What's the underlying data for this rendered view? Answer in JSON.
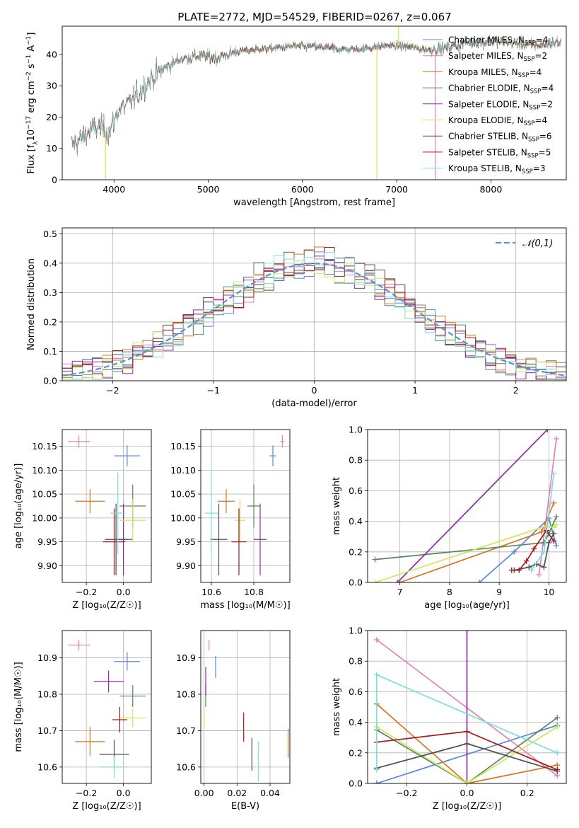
{
  "figure": {
    "title": "PLATE=2772, MJD=54529, FIBERID=0267, z=0.067"
  },
  "colors": {
    "Chabrier MILES": "#5b86d8",
    "Salpeter MILES": "#e77fb6",
    "Kroupa MILES": "#d9741f",
    "Chabrier ELODIE": "#5a8560",
    "Salpeter ELODIE": "#8f2aa8",
    "Kroupa ELODIE": "#cde85a",
    "Chabrier STELIB": "#4d4d4d",
    "Salpeter STELIB": "#a51919",
    "Kroupa STELIB": "#7fdcdc",
    "normal": "#5b8fd6"
  },
  "chart_data": [
    {
      "id": "spectrum",
      "type": "line",
      "xlabel": "wavelength [Angstrom, rest frame]",
      "ylabel_parts": [
        "Flux [f",
        "λ",
        "10",
        "−17",
        " erg cm",
        "−2",
        " s",
        "−1",
        " A",
        "−1",
        "]"
      ],
      "xlim": [
        3450,
        8800
      ],
      "ylim": [
        0,
        49
      ],
      "xticks": [
        4000,
        5000,
        6000,
        7000,
        8000
      ],
      "yticks": [
        0,
        10,
        20,
        30,
        40
      ],
      "continuum_x": [
        3550,
        3650,
        3750,
        3850,
        3950,
        4050,
        4150,
        4250,
        4350,
        4500,
        4700,
        4900,
        5100,
        5300,
        5500,
        5700,
        5900,
        6100,
        6300,
        6500,
        6700,
        6900,
        7100,
        7300,
        7500,
        7700,
        7900,
        8100,
        8300,
        8500,
        8750
      ],
      "continuum_y": [
        11,
        13,
        16,
        17,
        15,
        22.5,
        24,
        27,
        31,
        35,
        38.5,
        39.5,
        39,
        41,
        41.5,
        42,
        42.5,
        42.5,
        42,
        41.5,
        42,
        43,
        42.5,
        41.5,
        42,
        43.5,
        44,
        44,
        43.5,
        43,
        44
      ],
      "spikes": [
        {
          "x": 3910,
          "y": 0,
          "series": "Kroupa ELODIE"
        },
        {
          "x": 6790,
          "y": 0,
          "series": "Kroupa ELODIE"
        },
        {
          "x": 7410,
          "y": 0,
          "series": "Salpeter MILES"
        },
        {
          "x": 7020,
          "y": 49,
          "series": "Kroupa ELODIE"
        }
      ],
      "legend": [
        {
          "name": "Chabrier MILES",
          "label": "Chabrier MILES, N",
          "sub": "SSP",
          "val": "=4"
        },
        {
          "name": "Salpeter MILES",
          "label": "Salpeter MILES, N",
          "sub": "SSP",
          "val": "=2"
        },
        {
          "name": "Kroupa MILES",
          "label": "Kroupa MILES, N",
          "sub": "SSP",
          "val": "=4"
        },
        {
          "name": "Chabrier ELODIE",
          "label": "Chabrier ELODIE, N",
          "sub": "SSP",
          "val": "=4"
        },
        {
          "name": "Salpeter ELODIE",
          "label": "Salpeter ELODIE, N",
          "sub": "SSP",
          "val": "=2"
        },
        {
          "name": "Kroupa ELODIE",
          "label": "Kroupa ELODIE, N",
          "sub": "SSP",
          "val": "=4"
        },
        {
          "name": "Chabrier STELIB",
          "label": "Chabrier STELIB, N",
          "sub": "SSP",
          "val": "=6"
        },
        {
          "name": "Salpeter STELIB",
          "label": "Salpeter STELIB, N",
          "sub": "SSP",
          "val": "=5"
        },
        {
          "name": "Kroupa STELIB",
          "label": "Kroupa STELIB, N",
          "sub": "SSP",
          "val": "=3"
        }
      ]
    },
    {
      "id": "residuals",
      "type": "histogram",
      "xlabel": "(data-model)/error",
      "ylabel": "Normed distribution",
      "xlim": [
        -2.5,
        2.5
      ],
      "ylim": [
        0,
        0.52
      ],
      "xticks": [
        -2,
        -1,
        0,
        1,
        2
      ],
      "xticklabels": [
        "−2",
        "−1",
        "0",
        "1",
        "2"
      ],
      "yticks": [
        0,
        0.1,
        0.2,
        0.3,
        0.4,
        0.5
      ],
      "yticklabels": [
        "0.0",
        "0.1",
        "0.2",
        "0.3",
        "0.4",
        "0.5"
      ],
      "bin_width": 0.1,
      "legend": {
        "label": "𝒩(0,1)",
        "position": "upper right"
      },
      "series": [
        "Chabrier MILES",
        "Salpeter MILES",
        "Kroupa MILES",
        "Chabrier ELODIE",
        "Salpeter ELODIE",
        "Kroupa ELODIE",
        "Chabrier STELIB",
        "Salpeter STELIB",
        "Kroupa STELIB"
      ]
    },
    {
      "id": "age_vs_Z",
      "type": "errorbar",
      "xlabel": "Z [log₁₀(Z/Z☉)]",
      "ylabel": "age  [log₁₀(age/yr)]",
      "xlim": [
        -0.33,
        0.15
      ],
      "ylim": [
        9.865,
        10.185
      ],
      "xticks": [
        -0.2,
        0.0
      ],
      "xticklabels": [
        "−0.2",
        "0.0"
      ],
      "yticks": [
        9.9,
        9.95,
        10.0,
        10.05,
        10.1,
        10.15
      ],
      "yticklabels": [
        "9.90",
        "9.95",
        "10.00",
        "10.05",
        "10.10",
        "10.15"
      ],
      "points": [
        {
          "series": "Chabrier MILES",
          "x": 0.02,
          "xerr": 0.07,
          "y": 10.13,
          "yerr": 0.022
        },
        {
          "series": "Salpeter MILES",
          "x": -0.24,
          "xerr": 0.06,
          "y": 10.16,
          "yerr": 0.013
        },
        {
          "series": "Kroupa MILES",
          "x": -0.18,
          "xerr": 0.08,
          "y": 10.035,
          "yerr": 0.025
        },
        {
          "series": "Chabrier ELODIE",
          "x": 0.05,
          "xerr": 0.07,
          "y": 10.025,
          "yerr": 0.045
        },
        {
          "series": "Salpeter ELODIE",
          "x": 0.0,
          "xerr": 0.05,
          "y": 9.955,
          "yerr": 0.075
        },
        {
          "series": "Kroupa ELODIE",
          "x": 0.05,
          "xerr": 0.07,
          "y": 9.995,
          "yerr": 0.045
        },
        {
          "series": "Chabrier STELIB",
          "x": -0.04,
          "xerr": 0.06,
          "y": 9.955,
          "yerr": 0.075
        },
        {
          "series": "Salpeter STELIB",
          "x": -0.05,
          "xerr": 0.06,
          "y": 9.95,
          "yerr": 0.07
        },
        {
          "series": "Kroupa STELIB",
          "x": -0.03,
          "xerr": 0.04,
          "y": 10.01,
          "yerr": 0.085
        }
      ]
    },
    {
      "id": "age_vs_mass",
      "type": "errorbar",
      "xlabel": "mass [log₁₀(M/M☉)]",
      "ylabel": "",
      "xlim": [
        10.55,
        10.97
      ],
      "ylim": [
        9.865,
        10.185
      ],
      "xticks": [
        10.6,
        10.8
      ],
      "xticklabels": [
        "10.6",
        "10.8"
      ],
      "yticks": [
        9.9,
        9.95,
        10.0,
        10.05,
        10.1,
        10.15
      ],
      "yticklabels": [
        "9.90",
        "9.95",
        "10.00",
        "10.05",
        "10.10",
        "10.15"
      ],
      "points": [
        {
          "series": "Chabrier MILES",
          "x": 10.89,
          "xerr": 0.015,
          "y": 10.13,
          "yerr": 0.022
        },
        {
          "series": "Salpeter MILES",
          "x": 10.935,
          "xerr": 0.01,
          "y": 10.16,
          "yerr": 0.013
        },
        {
          "series": "Kroupa MILES",
          "x": 10.67,
          "xerr": 0.04,
          "y": 10.035,
          "yerr": 0.025
        },
        {
          "series": "Chabrier ELODIE",
          "x": 10.8,
          "xerr": 0.03,
          "y": 10.025,
          "yerr": 0.045
        },
        {
          "series": "Salpeter ELODIE",
          "x": 10.83,
          "xerr": 0.03,
          "y": 9.955,
          "yerr": 0.075
        },
        {
          "series": "Kroupa ELODIE",
          "x": 10.735,
          "xerr": 0.025,
          "y": 9.995,
          "yerr": 0.045
        },
        {
          "series": "Chabrier STELIB",
          "x": 10.635,
          "xerr": 0.04,
          "y": 9.955,
          "yerr": 0.075
        },
        {
          "series": "Salpeter STELIB",
          "x": 10.73,
          "xerr": 0.035,
          "y": 9.95,
          "yerr": 0.07
        },
        {
          "series": "Kroupa STELIB",
          "x": 10.6,
          "xerr": 0.03,
          "y": 10.01,
          "yerr": 0.085
        }
      ]
    },
    {
      "id": "weight_vs_age",
      "type": "line",
      "xlabel": "age  [log₁₀(age/yr)]",
      "ylabel": "mass weight",
      "xlim": [
        6.35,
        10.35
      ],
      "ylim": [
        0,
        1.0
      ],
      "xticks": [
        7,
        8,
        9,
        10
      ],
      "xticklabels": [
        "7",
        "8",
        "9",
        "10"
      ],
      "yticks": [
        0,
        0.2,
        0.4,
        0.6,
        0.8,
        1.0
      ],
      "yticklabels": [
        "0.0",
        "0.2",
        "0.4",
        "0.6",
        "0.8",
        "1.0"
      ],
      "series": [
        {
          "name": "Chabrier MILES",
          "x": [
            8.6,
            9.3,
            10.0,
            10.15
          ],
          "y": [
            0.0,
            0.2,
            0.42,
            0.24
          ]
        },
        {
          "name": "Salpeter MILES",
          "x": [
            9.8,
            10.15
          ],
          "y": [
            0.05,
            0.94
          ]
        },
        {
          "name": "Kroupa MILES",
          "x": [
            7.0,
            9.85,
            10.1
          ],
          "y": [
            0.0,
            0.33,
            0.52
          ]
        },
        {
          "name": "Chabrier ELODIE",
          "x": [
            6.5,
            9.9,
            10.0,
            10.15
          ],
          "y": [
            0.15,
            0.26,
            0.32,
            0.43
          ]
        },
        {
          "name": "Salpeter ELODIE",
          "x": [
            6.95,
            9.97
          ],
          "y": [
            0.0,
            1.0
          ]
        },
        {
          "name": "Kroupa ELODIE",
          "x": [
            6.5,
            9.95,
            10.1,
            10.15
          ],
          "y": [
            0.0,
            0.37,
            0.36,
            0.38
          ]
        },
        {
          "name": "Chabrier STELIB",
          "x": [
            9.3,
            9.6,
            9.75,
            9.9,
            10.0,
            10.1
          ],
          "y": [
            0.08,
            0.1,
            0.12,
            0.1,
            0.26,
            0.32
          ]
        },
        {
          "name": "Salpeter STELIB",
          "x": [
            9.25,
            9.4,
            9.55,
            9.7,
            9.95,
            10.1
          ],
          "y": [
            0.08,
            0.08,
            0.14,
            0.22,
            0.34,
            0.27
          ]
        },
        {
          "name": "Kroupa STELIB",
          "x": [
            9.65,
            9.9,
            10.1
          ],
          "y": [
            0.08,
            0.2,
            0.71
          ]
        }
      ]
    },
    {
      "id": "mass_vs_Z",
      "type": "errorbar",
      "xlabel": "Z [log₁₀(Z/Z☉)]",
      "ylabel": "mass [log₁₀(M/M☉)]",
      "xlim": [
        -0.33,
        0.15
      ],
      "ylim": [
        10.555,
        10.975
      ],
      "xticks": [
        -0.2,
        0.0
      ],
      "xticklabels": [
        "−0.2",
        "0.0"
      ],
      "yticks": [
        10.6,
        10.7,
        10.8,
        10.9
      ],
      "yticklabels": [
        "10.6",
        "10.7",
        "10.8",
        "10.9"
      ],
      "points": [
        {
          "series": "Chabrier MILES",
          "x": 0.02,
          "xerr": 0.07,
          "y": 10.89,
          "yerr": 0.025
        },
        {
          "series": "Salpeter MILES",
          "x": -0.24,
          "xerr": 0.06,
          "y": 10.935,
          "yerr": 0.015
        },
        {
          "series": "Kroupa MILES",
          "x": -0.18,
          "xerr": 0.08,
          "y": 10.67,
          "yerr": 0.04
        },
        {
          "series": "Chabrier ELODIE",
          "x": 0.05,
          "xerr": 0.07,
          "y": 10.795,
          "yerr": 0.03
        },
        {
          "series": "Salpeter ELODIE",
          "x": -0.08,
          "xerr": 0.08,
          "y": 10.835,
          "yerr": 0.03
        },
        {
          "series": "Kroupa ELODIE",
          "x": 0.05,
          "xerr": 0.07,
          "y": 10.735,
          "yerr": 0.025
        },
        {
          "series": "Chabrier STELIB",
          "x": -0.05,
          "xerr": 0.08,
          "y": 10.635,
          "yerr": 0.04
        },
        {
          "series": "Salpeter STELIB",
          "x": -0.02,
          "xerr": 0.04,
          "y": 10.73,
          "yerr": 0.035
        },
        {
          "series": "Kroupa STELIB",
          "x": -0.05,
          "xerr": 0.07,
          "y": 10.6,
          "yerr": 0.03
        }
      ]
    },
    {
      "id": "mass_vs_ebv",
      "type": "errorbar",
      "xlabel": "E(B-V)",
      "ylabel": "",
      "xlim": [
        -0.002,
        0.052
      ],
      "ylim": [
        10.555,
        10.975
      ],
      "xticks": [
        0.0,
        0.02,
        0.04
      ],
      "xticklabels": [
        "0.00",
        "0.02",
        "0.04"
      ],
      "yticks": [
        10.6,
        10.7,
        10.8,
        10.9
      ],
      "yticklabels": [
        "10.6",
        "10.7",
        "10.8",
        "10.9"
      ],
      "points": [
        {
          "series": "Chabrier MILES",
          "x": 0.007,
          "xerr": 0,
          "y": 10.875,
          "yerr": 0.03
        },
        {
          "series": "Salpeter MILES",
          "x": 0.003,
          "xerr": 0,
          "y": 10.935,
          "yerr": 0.015
        },
        {
          "series": "Kroupa MILES",
          "x": 0.051,
          "xerr": 0,
          "y": 10.665,
          "yerr": 0.04
        },
        {
          "series": "Chabrier ELODIE",
          "x": 0.001,
          "xerr": 0,
          "y": 10.795,
          "yerr": 0.03
        },
        {
          "series": "Salpeter ELODIE",
          "x": 0.001,
          "xerr": 0,
          "y": 10.835,
          "yerr": 0.04
        },
        {
          "series": "Kroupa ELODIE",
          "x": 0.0,
          "xerr": 0,
          "y": 10.735,
          "yerr": 0.025
        },
        {
          "series": "Chabrier STELIB",
          "x": 0.029,
          "xerr": 0,
          "y": 10.635,
          "yerr": 0.045
        },
        {
          "series": "Salpeter STELIB",
          "x": 0.024,
          "xerr": 0,
          "y": 10.71,
          "yerr": 0.04
        },
        {
          "series": "Kroupa STELIB",
          "x": 0.033,
          "xerr": 0,
          "y": 10.615,
          "yerr": 0.055
        }
      ]
    },
    {
      "id": "weight_vs_Z",
      "type": "line",
      "xlabel": "Z [log₁₀(Z/Z☉)]",
      "ylabel": "mass weight",
      "xlim": [
        -0.33,
        0.33
      ],
      "ylim": [
        0,
        1.0
      ],
      "xticks": [
        -0.2,
        0.0,
        0.2
      ],
      "xticklabels": [
        "−0.2",
        "0.0",
        "0.2"
      ],
      "yticks": [
        0,
        0.2,
        0.4,
        0.6,
        0.8,
        1.0
      ],
      "yticklabels": [
        "0.0",
        "0.2",
        "0.4",
        "0.6",
        "0.8",
        "1.0"
      ],
      "series": [
        {
          "name": "Chabrier MILES",
          "x": [
            -0.3,
            -0.3,
            0.3
          ],
          "y": [
            0.0,
            0.0,
            0.38
          ]
        },
        {
          "name": "Salpeter MILES",
          "x": [
            -0.3,
            0.3
          ],
          "y": [
            0.94,
            0.05
          ]
        },
        {
          "name": "Kroupa MILES",
          "x": [
            -0.3,
            0.0,
            0.3
          ],
          "y": [
            0.52,
            0.0,
            0.12
          ]
        },
        {
          "name": "Chabrier ELODIE",
          "x": [
            -0.3,
            0.0,
            0.3
          ],
          "y": [
            0.35,
            0.0,
            0.43
          ]
        },
        {
          "name": "Salpeter ELODIE",
          "x": [
            0.0,
            0.0
          ],
          "y": [
            0.0,
            1.0
          ]
        },
        {
          "name": "Kroupa ELODIE",
          "x": [
            -0.3,
            0.0,
            0.3
          ],
          "y": [
            0.37,
            0.0,
            0.37
          ]
        },
        {
          "name": "Chabrier STELIB",
          "x": [
            -0.3,
            0.0,
            0.3
          ],
          "y": [
            0.1,
            0.26,
            0.08
          ]
        },
        {
          "name": "Salpeter STELIB",
          "x": [
            -0.3,
            0.0,
            0.3
          ],
          "y": [
            0.27,
            0.34,
            0.09
          ]
        },
        {
          "name": "Kroupa STELIB",
          "x": [
            -0.3,
            -0.3,
            0.3
          ],
          "y": [
            0.09,
            0.71,
            0.2
          ]
        }
      ]
    }
  ]
}
